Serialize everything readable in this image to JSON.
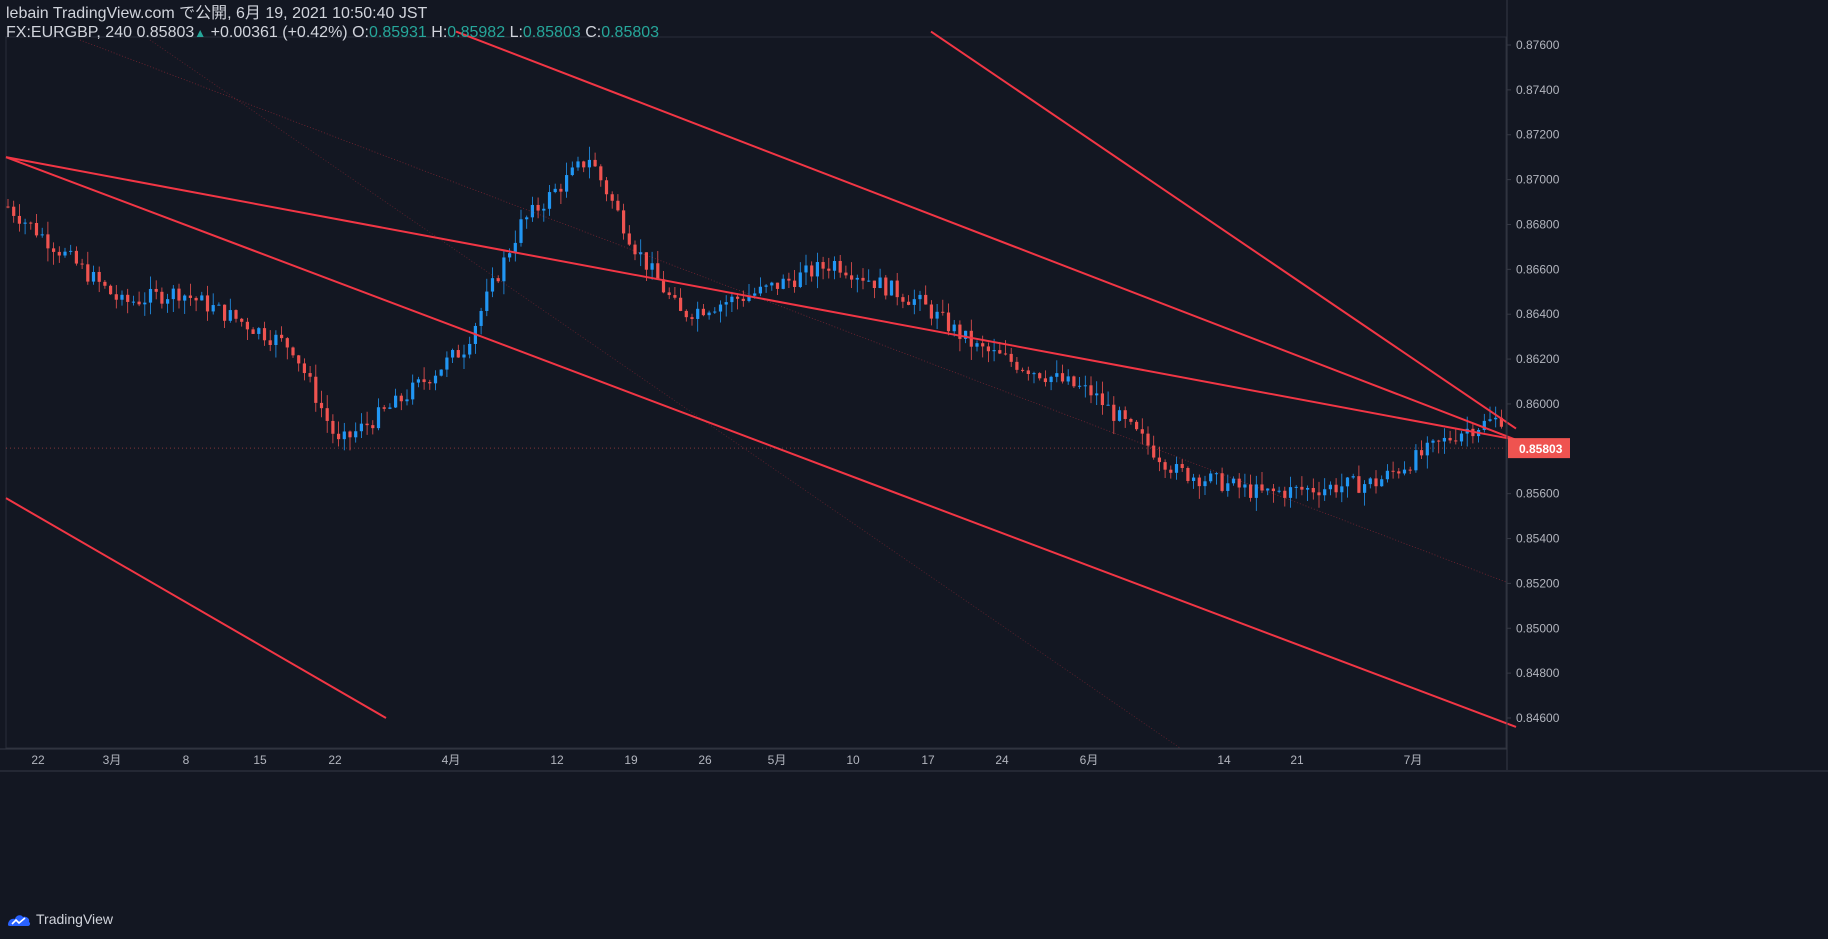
{
  "header": {
    "publisher_line": "lebain TradingView.com で公開, 6月 19, 2021 10:50:40 JST",
    "symbol": "FX:EURGBP, 240",
    "last_price": "0.85803",
    "change": "+0.00361 (+0.42%)",
    "open_label": "O:",
    "open": "0.85931",
    "high_label": "H:",
    "high": "0.85982",
    "low_label": "L:",
    "low": "0.85803",
    "close_label": "C:",
    "close": "0.85803"
  },
  "footer": {
    "brand": "TradingView"
  },
  "colors": {
    "background": "#131722",
    "up": "#2196f3",
    "down": "#ef5350",
    "trendline": "#f23645",
    "axis_text": "#b2b5be",
    "price_label_bg": "#ef5350"
  },
  "chart_data": {
    "type": "candlestick",
    "ylim": [
      0.845,
      0.8765
    ],
    "y_ticks": [
      "0.87600",
      "0.87400",
      "0.87200",
      "0.87000",
      "0.86800",
      "0.86600",
      "0.86400",
      "0.86200",
      "0.86000",
      "0.85803",
      "0.85600",
      "0.85400",
      "0.85200",
      "0.85000",
      "0.84800",
      "0.84600"
    ],
    "current_price": "0.85803",
    "x_ticks": [
      "22",
      "3月",
      "8",
      "15",
      "22",
      "4月",
      "12",
      "19",
      "26",
      "5月",
      "10",
      "17",
      "24",
      "6月",
      "14",
      "21",
      "7月"
    ],
    "close_path": [
      [
        0.8688,
        0
      ],
      [
        0.8645,
        20
      ],
      [
        0.865,
        30
      ],
      [
        0.8638,
        40
      ],
      [
        0.8625,
        50
      ],
      [
        0.8582,
        58
      ],
      [
        0.86,
        68
      ],
      [
        0.8625,
        80
      ],
      [
        0.868,
        90
      ],
      [
        0.871,
        102
      ],
      [
        0.867,
        110
      ],
      [
        0.864,
        118
      ],
      [
        0.865,
        132
      ],
      [
        0.8663,
        145
      ],
      [
        0.8645,
        160
      ],
      [
        0.8625,
        170
      ],
      [
        0.8605,
        190
      ],
      [
        0.857,
        205
      ],
      [
        0.856,
        220
      ],
      [
        0.8565,
        240
      ],
      [
        0.8588,
        255
      ],
      [
        0.86,
        270
      ],
      [
        0.863,
        282
      ],
      [
        0.8575,
        290
      ],
      [
        0.8572,
        300
      ],
      [
        0.857,
        310
      ],
      [
        0.8555,
        320
      ],
      [
        0.858,
        330
      ],
      [
        0.86,
        340
      ],
      [
        0.8615,
        350
      ],
      [
        0.863,
        360
      ],
      [
        0.8636,
        368
      ],
      [
        0.8628,
        378
      ],
      [
        0.8615,
        384
      ],
      [
        0.857,
        390
      ],
      [
        0.8545,
        405
      ],
      [
        0.852,
        418
      ],
      [
        0.853,
        430
      ],
      [
        0.8515,
        445
      ],
      [
        0.8505,
        455
      ],
      [
        0.8512,
        470
      ],
      [
        0.8488,
        490
      ],
      [
        0.8492,
        500
      ],
      [
        0.8535,
        508
      ],
      [
        0.859,
        515
      ],
      [
        0.863,
        525
      ],
      [
        0.865,
        532
      ],
      [
        0.867,
        540
      ],
      [
        0.8685,
        550
      ],
      [
        0.867,
        562
      ],
      [
        0.869,
        575
      ],
      [
        0.87,
        590
      ],
      [
        0.8685,
        605
      ],
      [
        0.871,
        622
      ],
      [
        0.8655,
        630
      ],
      [
        0.862,
        636
      ],
      [
        0.8605,
        645
      ],
      [
        0.8625,
        660
      ],
      [
        0.864,
        670
      ],
      [
        0.8645,
        680
      ],
      [
        0.8685,
        690
      ],
      [
        0.871,
        700
      ],
      [
        0.8705,
        712
      ],
      [
        0.869,
        720
      ],
      [
        0.87,
        735
      ],
      [
        0.8692,
        750
      ],
      [
        0.868,
        760
      ],
      [
        0.8705,
        775
      ],
      [
        0.868,
        785
      ],
      [
        0.8665,
        792
      ],
      [
        0.864,
        805
      ],
      [
        0.8628,
        818
      ],
      [
        0.8665,
        830
      ],
      [
        0.869,
        842
      ],
      [
        0.868,
        848
      ],
      [
        0.865,
        855
      ],
      [
        0.861,
        862
      ],
      [
        0.859,
        870
      ],
      [
        0.8585,
        882
      ],
      [
        0.859,
        895
      ],
      [
        0.8605,
        910
      ],
      [
        0.862,
        925
      ],
      [
        0.86,
        940
      ],
      [
        0.861,
        952
      ],
      [
        0.8625,
        965
      ],
      [
        0.8635,
        975
      ],
      [
        0.861,
        985
      ],
      [
        0.86,
        995
      ],
      [
        0.862,
        1005
      ],
      [
        0.863,
        1015
      ],
      [
        0.866,
        1025
      ],
      [
        0.8645,
        1035
      ],
      [
        0.864,
        1045
      ],
      [
        0.86,
        1055
      ],
      [
        0.8585,
        1062
      ],
      [
        0.8595,
        1075
      ],
      [
        0.86,
        1085
      ],
      [
        0.862,
        1095
      ],
      [
        0.8635,
        1102
      ],
      [
        0.8615,
        1112
      ],
      [
        0.86,
        1125
      ],
      [
        0.8585,
        1138
      ],
      [
        0.859,
        1150
      ],
      [
        0.86,
        1160
      ],
      [
        0.8605,
        1172
      ],
      [
        0.8595,
        1182
      ],
      [
        0.863,
        1190
      ],
      [
        0.8628,
        1196
      ],
      [
        0.86,
        1205
      ],
      [
        0.859,
        1215
      ],
      [
        0.8585,
        1225
      ],
      [
        0.8595,
        1235
      ],
      [
        0.861,
        1245
      ],
      [
        0.8605,
        1255
      ],
      [
        0.858,
        1265
      ],
      [
        0.856,
        1272
      ],
      [
        0.8548,
        1280
      ],
      [
        0.8555,
        1286
      ],
      [
        0.858,
        1292
      ],
      [
        0.859,
        1296
      ]
    ],
    "trendlines": [
      {
        "points": [
          [
            0,
            0.871
          ],
          [
            1510,
            0.8584
          ]
        ]
      },
      {
        "points": [
          [
            0,
            0.8558
          ],
          [
            380,
            0.846
          ]
        ]
      },
      {
        "points": [
          [
            0,
            0.871
          ],
          [
            1510,
            0.8456
          ]
        ]
      },
      {
        "points": [
          [
            450,
            0.8766
          ],
          [
            1510,
            0.8584
          ]
        ]
      },
      {
        "points": [
          [
            925,
            0.8766
          ],
          [
            1510,
            0.8589
          ]
        ]
      }
    ]
  }
}
